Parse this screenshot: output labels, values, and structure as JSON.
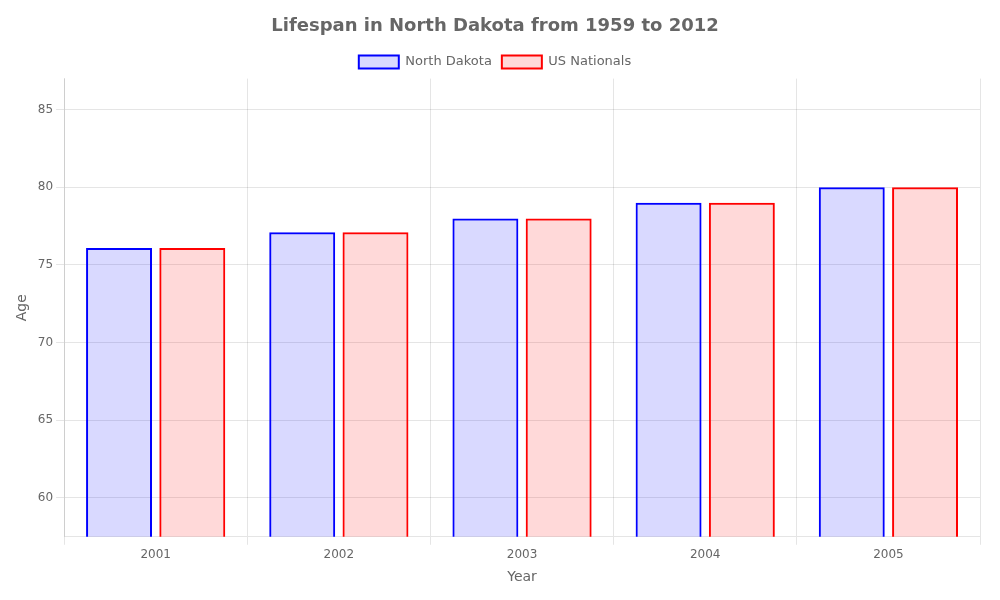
{
  "chart_data": {
    "type": "bar",
    "title": "Lifespan in North Dakota from 1959 to 2012",
    "x_label": "Year",
    "y_label": "Age",
    "categories": [
      "2001",
      "2002",
      "2003",
      "2004",
      "2005"
    ],
    "series": [
      {
        "name": "North Dakota",
        "color": "#0000ff",
        "values": [
          76.1,
          77.1,
          78.0,
          79.0,
          80.0
        ]
      },
      {
        "name": "US Nationals",
        "color": "#ff0000",
        "values": [
          76.1,
          77.1,
          78.0,
          79.0,
          80.0
        ]
      }
    ],
    "ylim": [
      57.5,
      87
    ],
    "yticks": [
      60,
      65,
      70,
      75,
      80,
      85
    ],
    "grid": true,
    "legend": "top"
  }
}
